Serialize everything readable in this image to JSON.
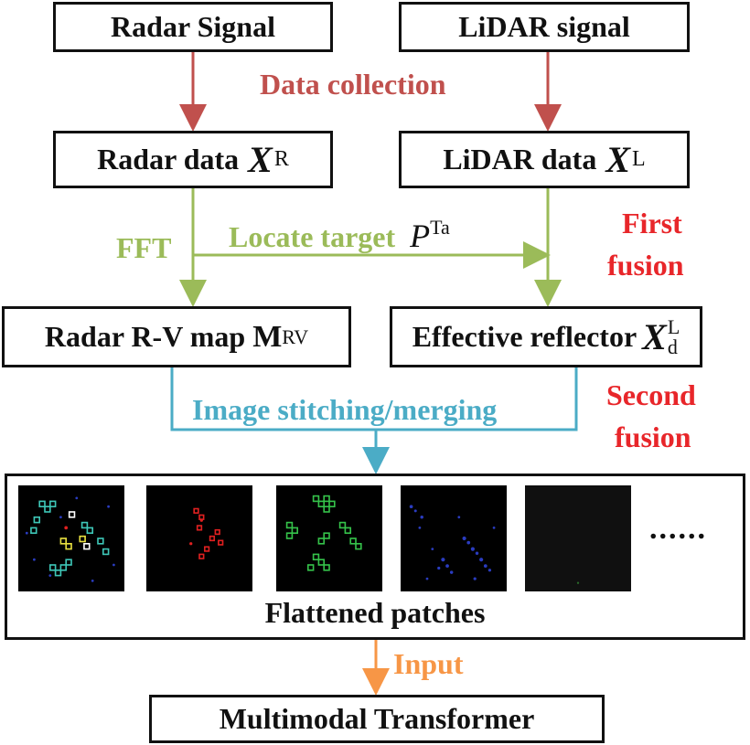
{
  "nodes": {
    "radar_signal": "Radar Signal",
    "lidar_signal": "LiDAR signal",
    "radar_data": "Radar data",
    "radar_data_sym": "X",
    "radar_data_sup": "R",
    "lidar_data": "LiDAR data",
    "lidar_data_sym": "X",
    "lidar_data_sup": "L",
    "radar_rv": "Radar R-V map",
    "radar_rv_sym": "M",
    "radar_rv_sub": "RV",
    "eff_reflector": "Effective reflector",
    "eff_reflector_sym": "X",
    "eff_reflector_sup": "L",
    "eff_reflector_sub": "d",
    "patches_label": "Flattened patches",
    "patches_ellipsis": "......",
    "transformer": "Multimodal Transformer"
  },
  "edges": {
    "data_collection": "Data collection",
    "fft": "FFT",
    "locate_target": "Locate target",
    "locate_sym": "P",
    "locate_sup": "Ta",
    "stitching": "Image stitching/merging",
    "input": "Input"
  },
  "annotations": {
    "first_fusion_1": "First",
    "first_fusion_2": "fusion",
    "second_fusion_1": "Second",
    "second_fusion_2": "fusion"
  },
  "colors": {
    "collection": "#c0504d",
    "fft": "#9bbb59",
    "stitch": "#4bacc6",
    "input": "#f79646",
    "fusion": "#e8262a",
    "patch_teal": "#3ec7b8",
    "patch_red": "#e02020",
    "patch_green": "#35c24a",
    "patch_blue": "#3340c0"
  }
}
